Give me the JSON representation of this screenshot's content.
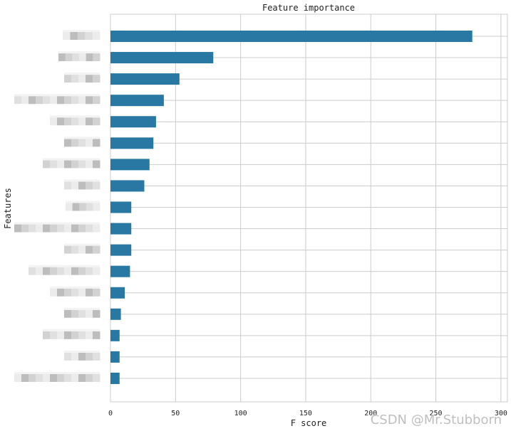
{
  "chart_data": {
    "type": "bar",
    "orientation": "horizontal",
    "title": "Feature importance",
    "xlabel": "F score",
    "ylabel": "Features",
    "xlim": [
      0,
      305
    ],
    "xticks": [
      0,
      50,
      100,
      150,
      200,
      250,
      300
    ],
    "grid": true,
    "bar_color": "#2878a3",
    "values": [
      278,
      79,
      53,
      41,
      35,
      33,
      30,
      26,
      16,
      16,
      16,
      15,
      11,
      8,
      7,
      7,
      7
    ]
  },
  "watermark": "CSDN @Mr.Stubborn"
}
